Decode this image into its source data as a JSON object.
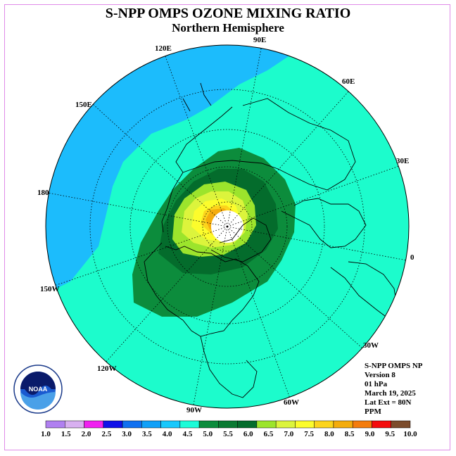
{
  "header": {
    "title": "S-NPP OMPS OZONE MIXING RATIO",
    "subtitle": "Northern Hemisphere"
  },
  "map": {
    "longitude_labels": [
      "90E",
      "60E",
      "30E",
      "0",
      "30W",
      "60W",
      "90W",
      "120W",
      "150W",
      "180",
      "150E",
      "120E"
    ],
    "projection": "north-polar stereographic",
    "colors": {
      "background_low": "#1cbcfc",
      "background_mid": "#1cfccc",
      "dark_green": "#046c2c",
      "green": "#0c8c3c",
      "light_green": "#9ce42c",
      "yellow_green": "#dcf43c",
      "yellow": "#fcfc2c",
      "orange_light": "#fcd41c",
      "orange": "#f4ac0c",
      "no_data": "#ffffff"
    }
  },
  "info": {
    "product": "S-NPP OMPS NP",
    "version": "Version 8",
    "pressure": "01 hPa",
    "date": "March 19, 2025",
    "lat_ext": "Lat Ext = 80N",
    "units": "PPM"
  },
  "colorbar": {
    "labels": [
      "1.0",
      "1.5",
      "2.0",
      "2.5",
      "3.0",
      "3.5",
      "4.0",
      "4.5",
      "5.0",
      "5.5",
      "6.0",
      "6.5",
      "7.0",
      "7.5",
      "8.0",
      "8.5",
      "9.0",
      "9.5",
      "10.0"
    ],
    "colors": [
      "#b080f0",
      "#d8b0f0",
      "#f020f0",
      "#1010e8",
      "#1070f0",
      "#10a0f8",
      "#18c8fc",
      "#1cfcd8",
      "#0c8c3c",
      "#0a7a32",
      "#046c2c",
      "#9ce42c",
      "#dcf43c",
      "#fcfc2c",
      "#fcd41c",
      "#f4ac0c",
      "#f47c0c",
      "#f40c0c",
      "#7c4c2c"
    ]
  },
  "logo": {
    "text": "NOAA",
    "ring_text": "NATIONAL OCEANIC AND ATMOSPHERIC ADMINISTRATION · U.S. DEPARTMENT OF COMMERCE"
  }
}
